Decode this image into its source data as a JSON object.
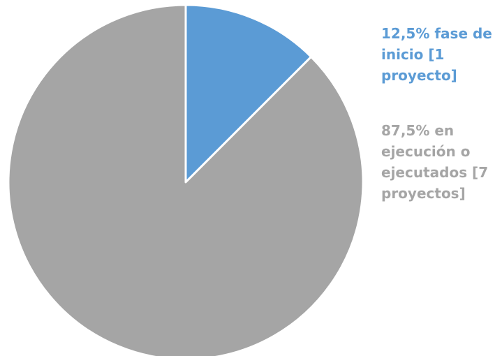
{
  "chart_data": {
    "type": "pie",
    "series": [
      {
        "name": "12,5% fase de inicio [1 proyecto]",
        "value": 12.5,
        "count": 1,
        "color": "#5b9bd5"
      },
      {
        "name": "87,5% en ejecución o ejecutados [7 proyectos]",
        "value": 87.5,
        "count": 7,
        "color": "#a5a5a5"
      }
    ],
    "labels": [
      {
        "lines": [
          "12,5% fase de",
          "inicio [1",
          "proyecto]"
        ],
        "color": "#5b9bd5"
      },
      {
        "lines": [
          "87,5% en",
          "ejecución o",
          "ejecutados [7",
          "proyectos]"
        ],
        "color": "#a5a5a5"
      }
    ],
    "slice_border_color": "#ffffff"
  }
}
